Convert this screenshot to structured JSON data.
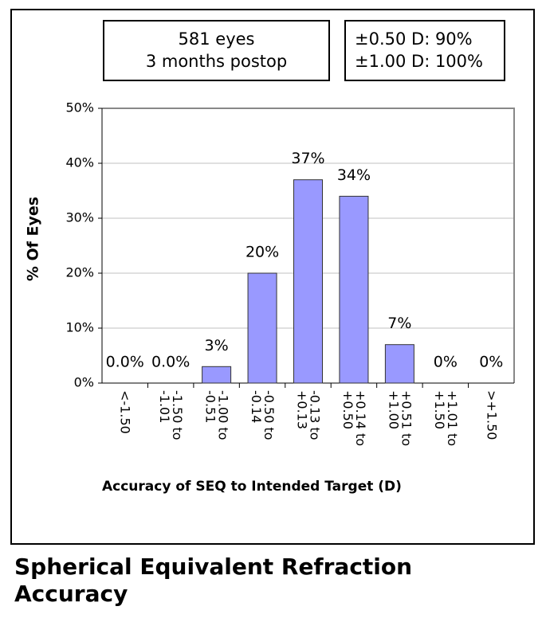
{
  "chart_data": {
    "type": "bar",
    "title": [
      "Spherical Equivalent Refraction",
      "Accuracy"
    ],
    "annotations": [
      [
        "581 eyes",
        "3 months postop"
      ],
      [
        "±0.50 D: 90%",
        "±1.00 D: 100%"
      ]
    ],
    "x_label": "Accuracy of SEQ to Intended Target (D)",
    "y_label": "% Of Eyes",
    "categories": [
      [
        "<-1.50"
      ],
      [
        "-1.50 to",
        "-1.01"
      ],
      [
        "-1.00 to",
        "-0.51"
      ],
      [
        "-0.50 to",
        "-0.14"
      ],
      [
        "-0.13 to",
        "+0.13"
      ],
      [
        "+0.14 to",
        "+0.50"
      ],
      [
        "+0.51 to",
        "+1.00"
      ],
      [
        "+1.01 to",
        "+1.50"
      ],
      [
        ">+1.50"
      ]
    ],
    "values": [
      0,
      0,
      3,
      20,
      37,
      34,
      7,
      0,
      0
    ],
    "value_labels": [
      "0.0%",
      "0.0%",
      "3%",
      "20%",
      "37%",
      "34%",
      "7%",
      "0%",
      "0%"
    ],
    "color": "#9999ff",
    "ylim": [
      0,
      50
    ],
    "yticks": [
      {
        "value": 0,
        "label": "0%"
      },
      {
        "value": 10,
        "label": "10%"
      },
      {
        "value": 20,
        "label": "20%"
      },
      {
        "value": 30,
        "label": "30%"
      },
      {
        "value": 40,
        "label": "40%"
      },
      {
        "value": 50,
        "label": "50%"
      }
    ],
    "grid": true
  }
}
